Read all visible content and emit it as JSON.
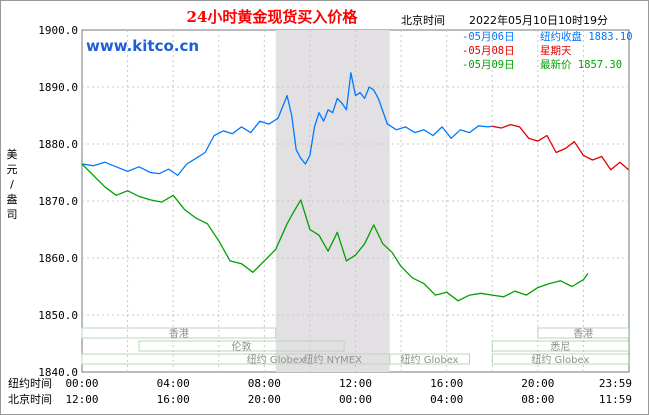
{
  "chart_data": {
    "type": "line",
    "title": "24小时黄金现货买入价格",
    "timestamp_label": "北京时间",
    "timestamp": "2022年05月10日10时19分",
    "watermark": "www.kitco.cn",
    "ylabel": "美元/盎司",
    "ylim": [
      1840,
      1900
    ],
    "yticks": [
      "1900.0",
      "1890.0",
      "1880.0",
      "1870.0",
      "1860.0",
      "1850.0",
      "1840.0"
    ],
    "x_rows": [
      {
        "label": "纽约时间",
        "ticks": [
          "00:00",
          "04:00",
          "08:00",
          "12:00",
          "16:00",
          "20:00",
          "23:59"
        ]
      },
      {
        "label": "北京时间",
        "ticks": [
          "12:00",
          "16:00",
          "20:00",
          "00:00",
          "04:00",
          "08:00",
          "11:59"
        ]
      }
    ],
    "legend": [
      {
        "key": "05月06日",
        "text": "纽约收盘 1883.10",
        "color": "#0078ff"
      },
      {
        "key": "05月08日",
        "text": "星期天",
        "color": "#e00000"
      },
      {
        "key": "05月09日",
        "text": "最新价 1857.30",
        "color": "#00a000"
      }
    ],
    "sessions": [
      {
        "name": "香港",
        "start": 0,
        "end": 8.5,
        "row": 0
      },
      {
        "name": "纽约 Globex",
        "start": 0,
        "end": 17,
        "row": 2
      },
      {
        "name": "伦敦",
        "start": 2.5,
        "end": 11.5,
        "row": 1
      },
      {
        "name": "纽约 NYMEX",
        "start": 8.5,
        "end": 13.5,
        "row": 2
      },
      {
        "name": "纽约 Globex",
        "start": 13.5,
        "end": 17,
        "row": 2
      },
      {
        "name": "香港",
        "start": 20,
        "end": 23.98,
        "row": 0
      },
      {
        "name": "悉尼",
        "start": 18,
        "end": 23.98,
        "row": 1
      },
      {
        "name": "纽约 Globex",
        "start": 18,
        "end": 23.98,
        "row": 2
      }
    ],
    "highlight": {
      "start": 8.5,
      "end": 13.5
    },
    "series": [
      {
        "key": "05月06日",
        "color": "#0078ff",
        "x": [
          0,
          0.5,
          1,
          1.5,
          2,
          2.5,
          3,
          3.4,
          3.8,
          4.2,
          4.6,
          5,
          5.4,
          5.8,
          6.2,
          6.6,
          7,
          7.4,
          7.8,
          8.2,
          8.6,
          9,
          9.2,
          9.4,
          9.6,
          9.8,
          10,
          10.2,
          10.4,
          10.6,
          10.8,
          11,
          11.2,
          11.4,
          11.6,
          11.8,
          12,
          12.2,
          12.4,
          12.6,
          12.8,
          13,
          13.4,
          13.8,
          14.2,
          14.6,
          15,
          15.4,
          15.8,
          16.2,
          16.6,
          17,
          17.4,
          17.8,
          18
        ],
        "y": [
          1876.5,
          1876.2,
          1876.8,
          1876,
          1875.2,
          1876,
          1875,
          1874.8,
          1875.6,
          1874.5,
          1876.5,
          1877.5,
          1878.5,
          1881.5,
          1882.3,
          1881.8,
          1883,
          1882,
          1884,
          1883.5,
          1884.5,
          1888.5,
          1885,
          1879,
          1877.5,
          1876.5,
          1878,
          1883,
          1885.5,
          1884,
          1886,
          1885.5,
          1888,
          1887.2,
          1886,
          1892.5,
          1888.5,
          1889,
          1888,
          1890,
          1889.5,
          1888,
          1883.5,
          1882.5,
          1883,
          1882,
          1882.5,
          1881.5,
          1883,
          1881,
          1882.5,
          1882,
          1883.2,
          1883,
          1883.1
        ]
      },
      {
        "key": "05月08日",
        "color": "#e00000",
        "x": [
          18,
          18.4,
          18.8,
          19.2,
          19.6,
          20,
          20.4,
          20.8,
          21.2,
          21.6,
          22,
          22.4,
          22.8,
          23.2,
          23.6,
          23.98
        ],
        "y": [
          1883.1,
          1882.8,
          1883.4,
          1883,
          1881,
          1880.5,
          1881.5,
          1878.5,
          1879.2,
          1880.4,
          1878,
          1877.2,
          1877.8,
          1875.5,
          1876.8,
          1875.5
        ]
      },
      {
        "key": "05月09日",
        "color": "#00a000",
        "x": [
          0,
          0.5,
          1,
          1.5,
          2,
          2.5,
          3,
          3.5,
          4,
          4.5,
          5,
          5.5,
          6,
          6.5,
          7,
          7.5,
          8,
          8.5,
          9,
          9.3,
          9.6,
          10,
          10.4,
          10.8,
          11.2,
          11.6,
          12,
          12.4,
          12.8,
          13.2,
          13.6,
          14,
          14.5,
          15,
          15.5,
          16,
          16.5,
          17,
          17.5,
          18,
          18.5,
          19,
          19.5,
          20,
          20.5,
          21,
          21.5,
          22,
          22.2
        ],
        "y": [
          1876.5,
          1874.5,
          1872.5,
          1871,
          1871.8,
          1870.8,
          1870.2,
          1869.8,
          1871,
          1868.5,
          1867,
          1866,
          1863,
          1859.5,
          1859,
          1857.5,
          1859.5,
          1861.5,
          1866,
          1868.2,
          1870.2,
          1865,
          1864,
          1861.2,
          1864.5,
          1859.5,
          1860.5,
          1862.5,
          1865.8,
          1862.5,
          1861,
          1858.5,
          1856.5,
          1855.5,
          1853.5,
          1854,
          1852.5,
          1853.5,
          1853.8,
          1853.5,
          1853.2,
          1854.2,
          1853.5,
          1854.8,
          1855.5,
          1856,
          1855,
          1856.2,
          1857.3
        ]
      }
    ]
  }
}
